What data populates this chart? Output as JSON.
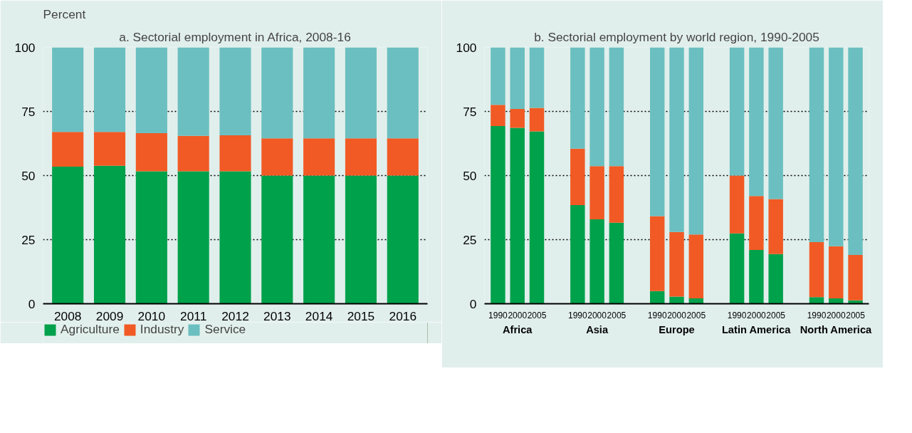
{
  "chart_data": [
    {
      "type": "bar",
      "stacked": true,
      "title": "a. Sectorial employment in Africa, 2008-16",
      "ylabel": "Percent",
      "categories": [
        "2008",
        "2009",
        "2010",
        "2011",
        "2012",
        "2013",
        "2014",
        "2015",
        "2016"
      ],
      "series": [
        {
          "name": "Agriculture",
          "color": "#00a14b",
          "values": [
            53.5,
            53.8,
            51.7,
            51.7,
            51.7,
            50,
            50,
            50,
            50
          ]
        },
        {
          "name": "Industry",
          "color": "#f15a24",
          "values": [
            13.5,
            13.2,
            14.8,
            13.8,
            14,
            14.5,
            14.5,
            14.5,
            14.5
          ]
        },
        {
          "name": "Service",
          "color": "#6bbfc0",
          "values": [
            33,
            33,
            33.5,
            34.5,
            34.3,
            35.5,
            35.5,
            35.5,
            35.5
          ]
        }
      ],
      "ylim": [
        0,
        100
      ],
      "yticks": [
        0,
        25,
        50,
        75,
        100
      ],
      "grid": "y",
      "legend": "bottom"
    },
    {
      "type": "bar",
      "stacked": true,
      "title": "b. Sectorial employment by world region, 1990-2005",
      "categories": [
        "1990",
        "2000",
        "2005",
        "1990",
        "2000",
        "2005",
        "1990",
        "2000",
        "2005",
        "1990",
        "2000",
        "2005",
        "1990",
        "2000",
        "2005"
      ],
      "annotations": [
        "Africa",
        "Asia",
        "Europe",
        "Latin America",
        "North America"
      ],
      "series": [
        {
          "color": "#00a14b",
          "values": [
            69.3,
            68.6,
            67.2,
            38.5,
            32.9,
            31.6,
            4.9,
            2.8,
            2.1,
            27.4,
            21,
            19.4,
            2.6,
            2.1,
            1.3
          ]
        },
        {
          "color": "#f15a24",
          "values": [
            8.3,
            7.4,
            9.2,
            22,
            20.8,
            22.1,
            29.3,
            25.2,
            24.9,
            22.6,
            21,
            21.4,
            21.4,
            20.3,
            17.7
          ]
        },
        {
          "color": "#6bbfc0",
          "values": [
            22.4,
            24,
            23.6,
            39.5,
            46.3,
            46.3,
            65.8,
            72,
            73,
            50,
            58,
            59.2,
            76,
            77.6,
            81
          ]
        }
      ],
      "ylim": [
        0,
        100
      ],
      "yticks": [
        0,
        25,
        50,
        75,
        100
      ],
      "grid": "y"
    }
  ]
}
